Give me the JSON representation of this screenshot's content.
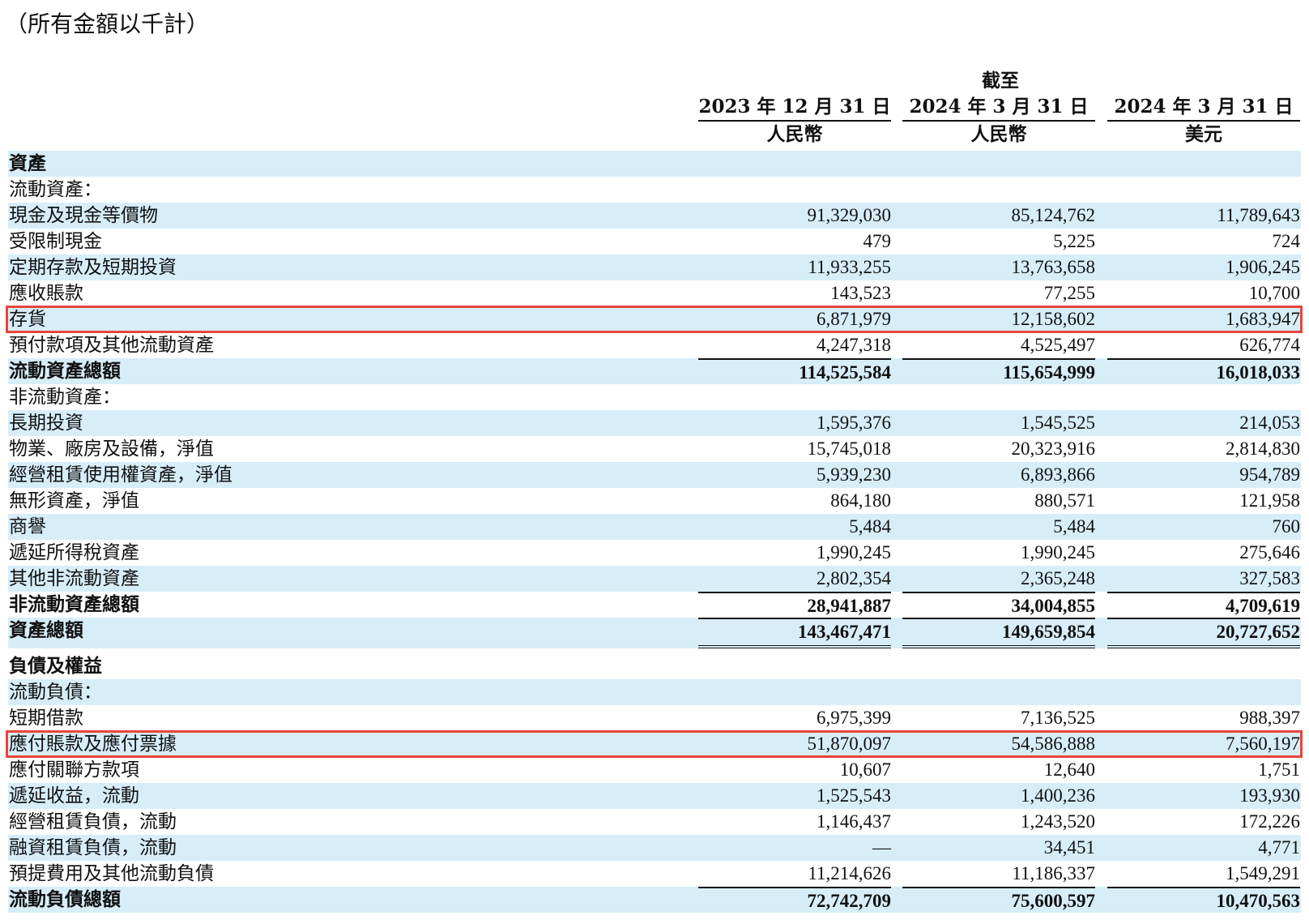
{
  "note": "（所有金額以千計）",
  "as_of": "截至",
  "columns": [
    {
      "date": "2023 年 12 月 31 日",
      "currency": "人民幣"
    },
    {
      "date": "2024 年 3 月 31 日",
      "currency": "人民幣"
    },
    {
      "date": "2024 年 3 月 31 日",
      "currency": "美元"
    }
  ],
  "rows": [
    {
      "label": "資產",
      "values": [
        "",
        "",
        ""
      ],
      "bold": true
    },
    {
      "label": "流動資產：",
      "values": [
        "",
        "",
        ""
      ]
    },
    {
      "label": "現金及現金等價物",
      "values": [
        "91,329,030",
        "85,124,762",
        "11,789,643"
      ]
    },
    {
      "label": "受限制現金",
      "values": [
        "479",
        "5,225",
        "724"
      ]
    },
    {
      "label": "定期存款及短期投資",
      "values": [
        "11,933,255",
        "13,763,658",
        "1,906,245"
      ]
    },
    {
      "label": "應收賬款",
      "values": [
        "143,523",
        "77,255",
        "10,700"
      ]
    },
    {
      "label": "存貨",
      "values": [
        "6,871,979",
        "12,158,602",
        "1,683,947"
      ],
      "highlight": true
    },
    {
      "label": "預付款項及其他流動資產",
      "values": [
        "4,247,318",
        "4,525,497",
        "626,774"
      ]
    },
    {
      "label": "流動資產總額",
      "values": [
        "114,525,584",
        "115,654,999",
        "16,018,033"
      ],
      "bold": true,
      "total": true
    },
    {
      "label": "非流動資產：",
      "values": [
        "",
        "",
        ""
      ]
    },
    {
      "label": "長期投資",
      "values": [
        "1,595,376",
        "1,545,525",
        "214,053"
      ]
    },
    {
      "label": "物業、廠房及設備，淨值",
      "values": [
        "15,745,018",
        "20,323,916",
        "2,814,830"
      ]
    },
    {
      "label": "經營租賃使用權資產，淨值",
      "values": [
        "5,939,230",
        "6,893,866",
        "954,789"
      ]
    },
    {
      "label": "無形資產，淨值",
      "values": [
        "864,180",
        "880,571",
        "121,958"
      ]
    },
    {
      "label": "商譽",
      "values": [
        "5,484",
        "5,484",
        "760"
      ]
    },
    {
      "label": "遞延所得稅資產",
      "values": [
        "1,990,245",
        "1,990,245",
        "275,646"
      ]
    },
    {
      "label": "其他非流動資產",
      "values": [
        "2,802,354",
        "2,365,248",
        "327,583"
      ]
    },
    {
      "label": "非流動資產總額",
      "values": [
        "28,941,887",
        "34,004,855",
        "4,709,619"
      ],
      "bold": true,
      "total": true
    },
    {
      "label": "資產總額",
      "values": [
        "143,467,471",
        "149,659,854",
        "20,727,652"
      ],
      "bold": true,
      "total": true,
      "double": true
    },
    {
      "label": "負債及權益",
      "values": [
        "",
        "",
        ""
      ],
      "bold": true
    },
    {
      "label": "流動負債：",
      "values": [
        "",
        "",
        ""
      ]
    },
    {
      "label": "短期借款",
      "values": [
        "6,975,399",
        "7,136,525",
        "988,397"
      ]
    },
    {
      "label": "應付賬款及應付票據",
      "values": [
        "51,870,097",
        "54,586,888",
        "7,560,197"
      ],
      "highlight": true
    },
    {
      "label": "應付關聯方款項",
      "values": [
        "10,607",
        "12,640",
        "1,751"
      ]
    },
    {
      "label": "遞延收益，流動",
      "values": [
        "1,525,543",
        "1,400,236",
        "193,930"
      ]
    },
    {
      "label": "經營租賃負債，流動",
      "values": [
        "1,146,437",
        "1,243,520",
        "172,226"
      ]
    },
    {
      "label": "融資租賃負債，流動",
      "values": [
        "—",
        "34,451",
        "4,771"
      ]
    },
    {
      "label": "預提費用及其他流動負債",
      "values": [
        "11,214,626",
        "11,186,337",
        "1,549,291"
      ]
    },
    {
      "label": "流動負債總額",
      "values": [
        "72,742,709",
        "75,600,597",
        "10,470,563"
      ],
      "bold": true,
      "total": true
    }
  ]
}
